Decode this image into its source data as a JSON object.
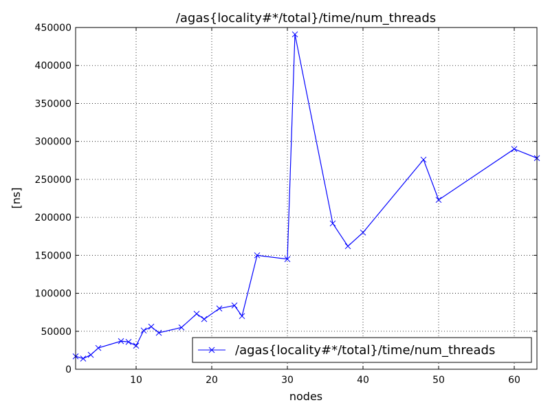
{
  "chart_data": {
    "type": "line",
    "title": "/agas{locality#*/total}/time/num_threads",
    "xlabel": "nodes",
    "ylabel": "[ns]",
    "xlim": [
      2,
      63
    ],
    "ylim": [
      0,
      450000
    ],
    "x_ticks": [
      10,
      20,
      30,
      40,
      50,
      60
    ],
    "y_ticks": [
      0,
      50000,
      100000,
      150000,
      200000,
      250000,
      300000,
      350000,
      400000,
      450000
    ],
    "grid": true,
    "legend_position": "lower-right",
    "series": [
      {
        "name": "/agas{locality#*/total}/time/num_threads",
        "color": "#0000ff",
        "marker": "x",
        "points": [
          [
            2,
            17000
          ],
          [
            3,
            14000
          ],
          [
            4,
            19000
          ],
          [
            5,
            28000
          ],
          [
            8,
            37000
          ],
          [
            9,
            36000
          ],
          [
            10,
            31000
          ],
          [
            11,
            51000
          ],
          [
            12,
            56000
          ],
          [
            13,
            48000
          ],
          [
            16,
            55000
          ],
          [
            18,
            73000
          ],
          [
            19,
            66000
          ],
          [
            21,
            80000
          ],
          [
            23,
            84000
          ],
          [
            24,
            70000
          ],
          [
            26,
            150000
          ],
          [
            30,
            145000
          ],
          [
            31,
            441000
          ],
          [
            36,
            192000
          ],
          [
            38,
            162000
          ],
          [
            40,
            180000
          ],
          [
            48,
            276000
          ],
          [
            50,
            223000
          ],
          [
            60,
            290000
          ],
          [
            63,
            278000
          ]
        ]
      }
    ]
  }
}
